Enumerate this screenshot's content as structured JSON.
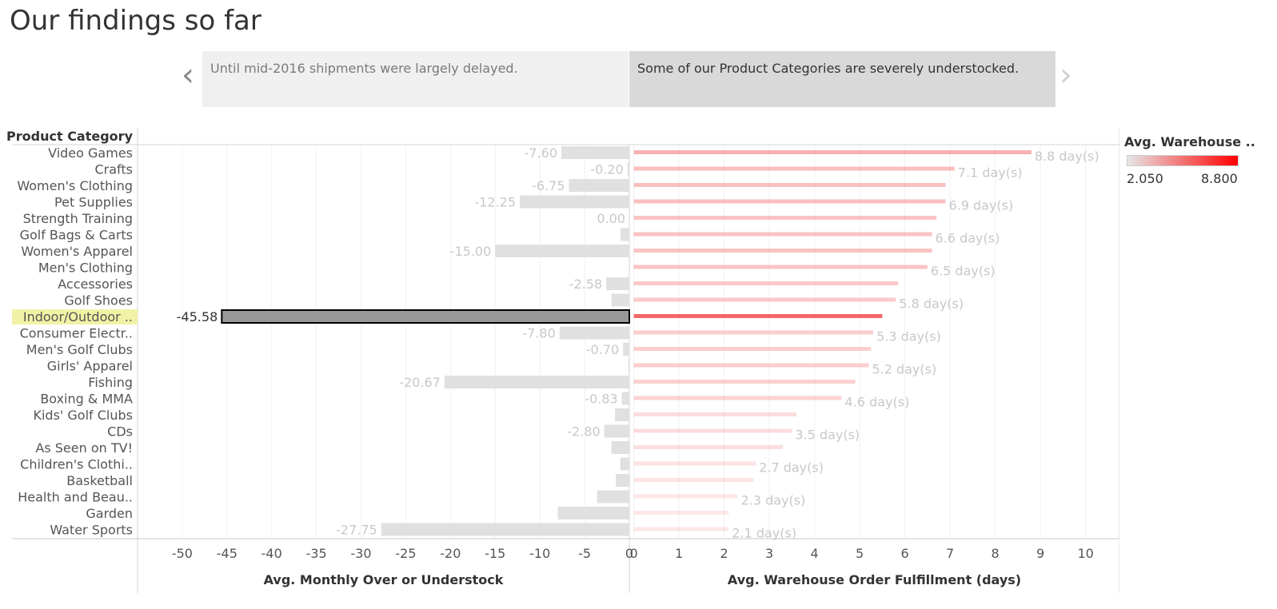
{
  "page": {
    "title": "Our findings so far"
  },
  "story": {
    "prev_icon": "chevron-left-icon",
    "next_icon": "chevron-right-icon",
    "points": [
      {
        "text": "Until mid-2016 shipments were largely delayed."
      },
      {
        "text": "Some of our Product Categories are severely understocked."
      }
    ]
  },
  "legend": {
    "title": "Avg. Warehouse ..",
    "min": "2.050",
    "max": "8.800",
    "color_low": "#e6e6e6",
    "color_high": "#ff0000"
  },
  "colors": {
    "stock_bar": "#e0e0e0",
    "stock_bar_selected": "#999999",
    "highlight": "#f2f2a6",
    "label_muted": "#c8c8c8"
  },
  "chart_data": {
    "type": "bar",
    "row_header": "Product Category",
    "categories": [
      "Video Games",
      "Crafts",
      "Women's Clothing",
      "Pet Supplies",
      "Strength Training",
      "Golf Bags & Carts",
      "Women's Apparel",
      "Men's Clothing",
      "Accessories",
      "Golf Shoes",
      "Indoor/Outdoor ..",
      "Consumer Electr..",
      "Men's Golf Clubs",
      "Girls' Apparel",
      "Fishing",
      "Boxing & MMA",
      "Kids' Golf Clubs",
      "CDs",
      "As Seen on  TV!",
      "Children's Clothi..",
      "Basketball",
      "Health and Beau..",
      "Garden",
      "Water Sports"
    ],
    "selected_category": "Indoor/Outdoor ..",
    "left_panel": {
      "xlabel": "Avg. Monthly Over or Understock",
      "xlim": [
        -55,
        0
      ],
      "ticks": [
        "-50",
        "-45",
        "-40",
        "-35",
        "-30",
        "-25",
        "-20",
        "-15",
        "-10",
        "-5",
        "0"
      ],
      "values": [
        -7.6,
        -0.2,
        -6.75,
        -12.25,
        0.0,
        -1.0,
        -15.0,
        0.0,
        -2.58,
        -2.0,
        -45.58,
        -7.8,
        -0.7,
        -0.1,
        -20.67,
        -0.83,
        -1.6,
        -2.8,
        -2.0,
        -1.0,
        -1.5,
        -3.6,
        -8.0,
        -27.75
      ],
      "labels": [
        "-7.60",
        "-0.20",
        "-6.75",
        "-12.25",
        "0.00",
        "",
        "-15.00",
        "",
        "-2.58",
        "",
        "-45.58",
        "-7.80",
        "-0.70",
        "",
        "-20.67",
        "-0.83",
        "",
        "-2.80",
        "",
        "",
        "",
        "",
        "",
        "-27.75"
      ]
    },
    "right_panel": {
      "xlabel": "Avg. Warehouse Order Fulfillment (days)",
      "xlim": [
        -0.1,
        10.75
      ],
      "ticks": [
        "0",
        "1",
        "2",
        "3",
        "4",
        "5",
        "6",
        "7",
        "8",
        "9",
        "10"
      ],
      "values": [
        8.8,
        7.1,
        6.9,
        6.9,
        6.7,
        6.6,
        6.6,
        6.5,
        5.85,
        5.8,
        5.5,
        5.3,
        5.25,
        5.2,
        4.9,
        4.6,
        3.6,
        3.5,
        3.3,
        2.7,
        2.65,
        2.3,
        2.1,
        2.1
      ],
      "labels": [
        "8.8 day(s)",
        "7.1 day(s)",
        "",
        "6.9 day(s)",
        "",
        "6.6 day(s)",
        "",
        "6.5 day(s)",
        "",
        "5.8 day(s)",
        "",
        "5.3 day(s)",
        "",
        "5.2 day(s)",
        "",
        "4.6 day(s)",
        "",
        "3.5 day(s)",
        "",
        "2.7 day(s)",
        "",
        "2.3 day(s)",
        "",
        "2.1 day(s)"
      ],
      "color_range": [
        2.05,
        8.8
      ]
    }
  }
}
